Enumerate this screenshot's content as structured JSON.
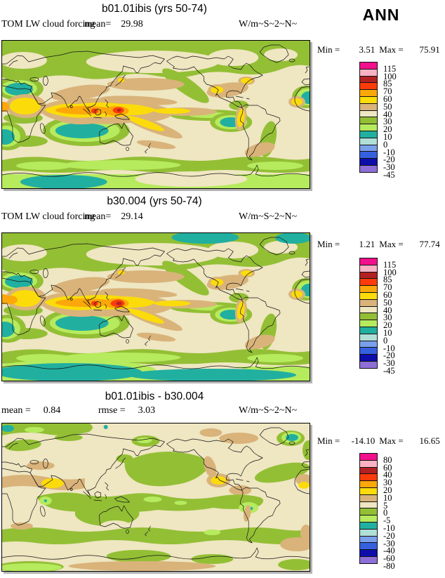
{
  "ann_label": "ANN",
  "palette": [
    "#f2108c",
    "#fbb3c3",
    "#b22222",
    "#fb3c0a",
    "#fca70a",
    "#fbdc0a",
    "#d9b37a",
    "#efe6c2",
    "#93bf35",
    "#b6eb5e",
    "#21afa0",
    "#b0dfd8",
    "#7aa0ec",
    "#3561e0",
    "#0d0daa",
    "#8e6fd8"
  ],
  "palette_names": [
    "magenta",
    "light-pink",
    "dark-red",
    "red-orange",
    "orange",
    "gold",
    "tan",
    "beige",
    "olive-green",
    "light-green",
    "teal",
    "light-cyan",
    "light-blue",
    "blue",
    "navy",
    "purple"
  ],
  "panels": [
    {
      "title": "b01.01ibis (yrs 50-74)",
      "var_label": "TOM LW cloud forcing",
      "stats": [
        {
          "label": "mean=",
          "value": "29.98"
        }
      ],
      "units": "W/m~S~2~N~",
      "legend": {
        "min_label": "Min =",
        "min": "3.51",
        "max_label": "Max =",
        "max": "75.91",
        "ticks": [
          "115",
          "100",
          "85",
          "70",
          "60",
          "50",
          "40",
          "30",
          "20",
          "10",
          "0",
          "-10",
          "-20",
          "-30",
          "-45"
        ]
      }
    },
    {
      "title": "b30.004 (yrs 50-74)",
      "var_label": "TOM LW cloud forcing",
      "stats": [
        {
          "label": "mean=",
          "value": "29.14"
        }
      ],
      "units": "W/m~S~2~N~",
      "legend": {
        "min_label": "Min =",
        "min": "1.21",
        "max_label": "Max =",
        "max": "77.74",
        "ticks": [
          "115",
          "100",
          "85",
          "70",
          "60",
          "50",
          "40",
          "30",
          "20",
          "10",
          "0",
          "-10",
          "-20",
          "-30",
          "-45"
        ]
      }
    },
    {
      "title": "b01.01ibis - b30.004",
      "stats": [
        {
          "label": "mean =",
          "value": "0.84"
        },
        {
          "label": "rmse =",
          "value": "3.03"
        }
      ],
      "units": "W/m~S~2~N~",
      "legend": {
        "min_label": "Min =",
        "min": "-14.10",
        "max_label": "Max =",
        "max": "16.65",
        "ticks": [
          "80",
          "60",
          "40",
          "30",
          "20",
          "10",
          "5",
          "0",
          "-5",
          "-10",
          "-20",
          "-30",
          "-40",
          "-60",
          "-80"
        ]
      }
    }
  ],
  "chart_data": [
    {
      "type": "heatmap",
      "subtype": "global lat-lon filled contour map (equirectangular, 0-360E)",
      "title": "b01.01ibis (yrs 50-74)",
      "variable": "TOM LW cloud forcing",
      "season": "ANN",
      "units": "W/m~S~2~N~",
      "stats": {
        "mean": 29.98,
        "min": 3.51,
        "max": 75.91
      },
      "contour_levels": [
        -45,
        -30,
        -20,
        -10,
        0,
        10,
        20,
        30,
        40,
        50,
        60,
        70,
        85,
        100,
        115
      ],
      "legend_position": "right"
    },
    {
      "type": "heatmap",
      "subtype": "global lat-lon filled contour map (equirectangular, 0-360E)",
      "title": "b30.004 (yrs 50-74)",
      "variable": "TOM LW cloud forcing",
      "season": "ANN",
      "units": "W/m~S~2~N~",
      "stats": {
        "mean": 29.14,
        "min": 1.21,
        "max": 77.74
      },
      "contour_levels": [
        -45,
        -30,
        -20,
        -10,
        0,
        10,
        20,
        30,
        40,
        50,
        60,
        70,
        85,
        100,
        115
      ],
      "legend_position": "right"
    },
    {
      "type": "heatmap",
      "subtype": "global lat-lon filled contour difference map (equirectangular, 0-360E)",
      "title": "b01.01ibis - b30.004",
      "variable": "TOM LW cloud forcing difference",
      "season": "ANN",
      "units": "W/m~S~2~N~",
      "stats": {
        "mean": 0.84,
        "rmse": 3.03,
        "min": -14.1,
        "max": 16.65
      },
      "contour_levels": [
        -80,
        -60,
        -40,
        -30,
        -20,
        -10,
        -5,
        0,
        5,
        10,
        20,
        30,
        40,
        60,
        80
      ],
      "legend_position": "right"
    }
  ]
}
